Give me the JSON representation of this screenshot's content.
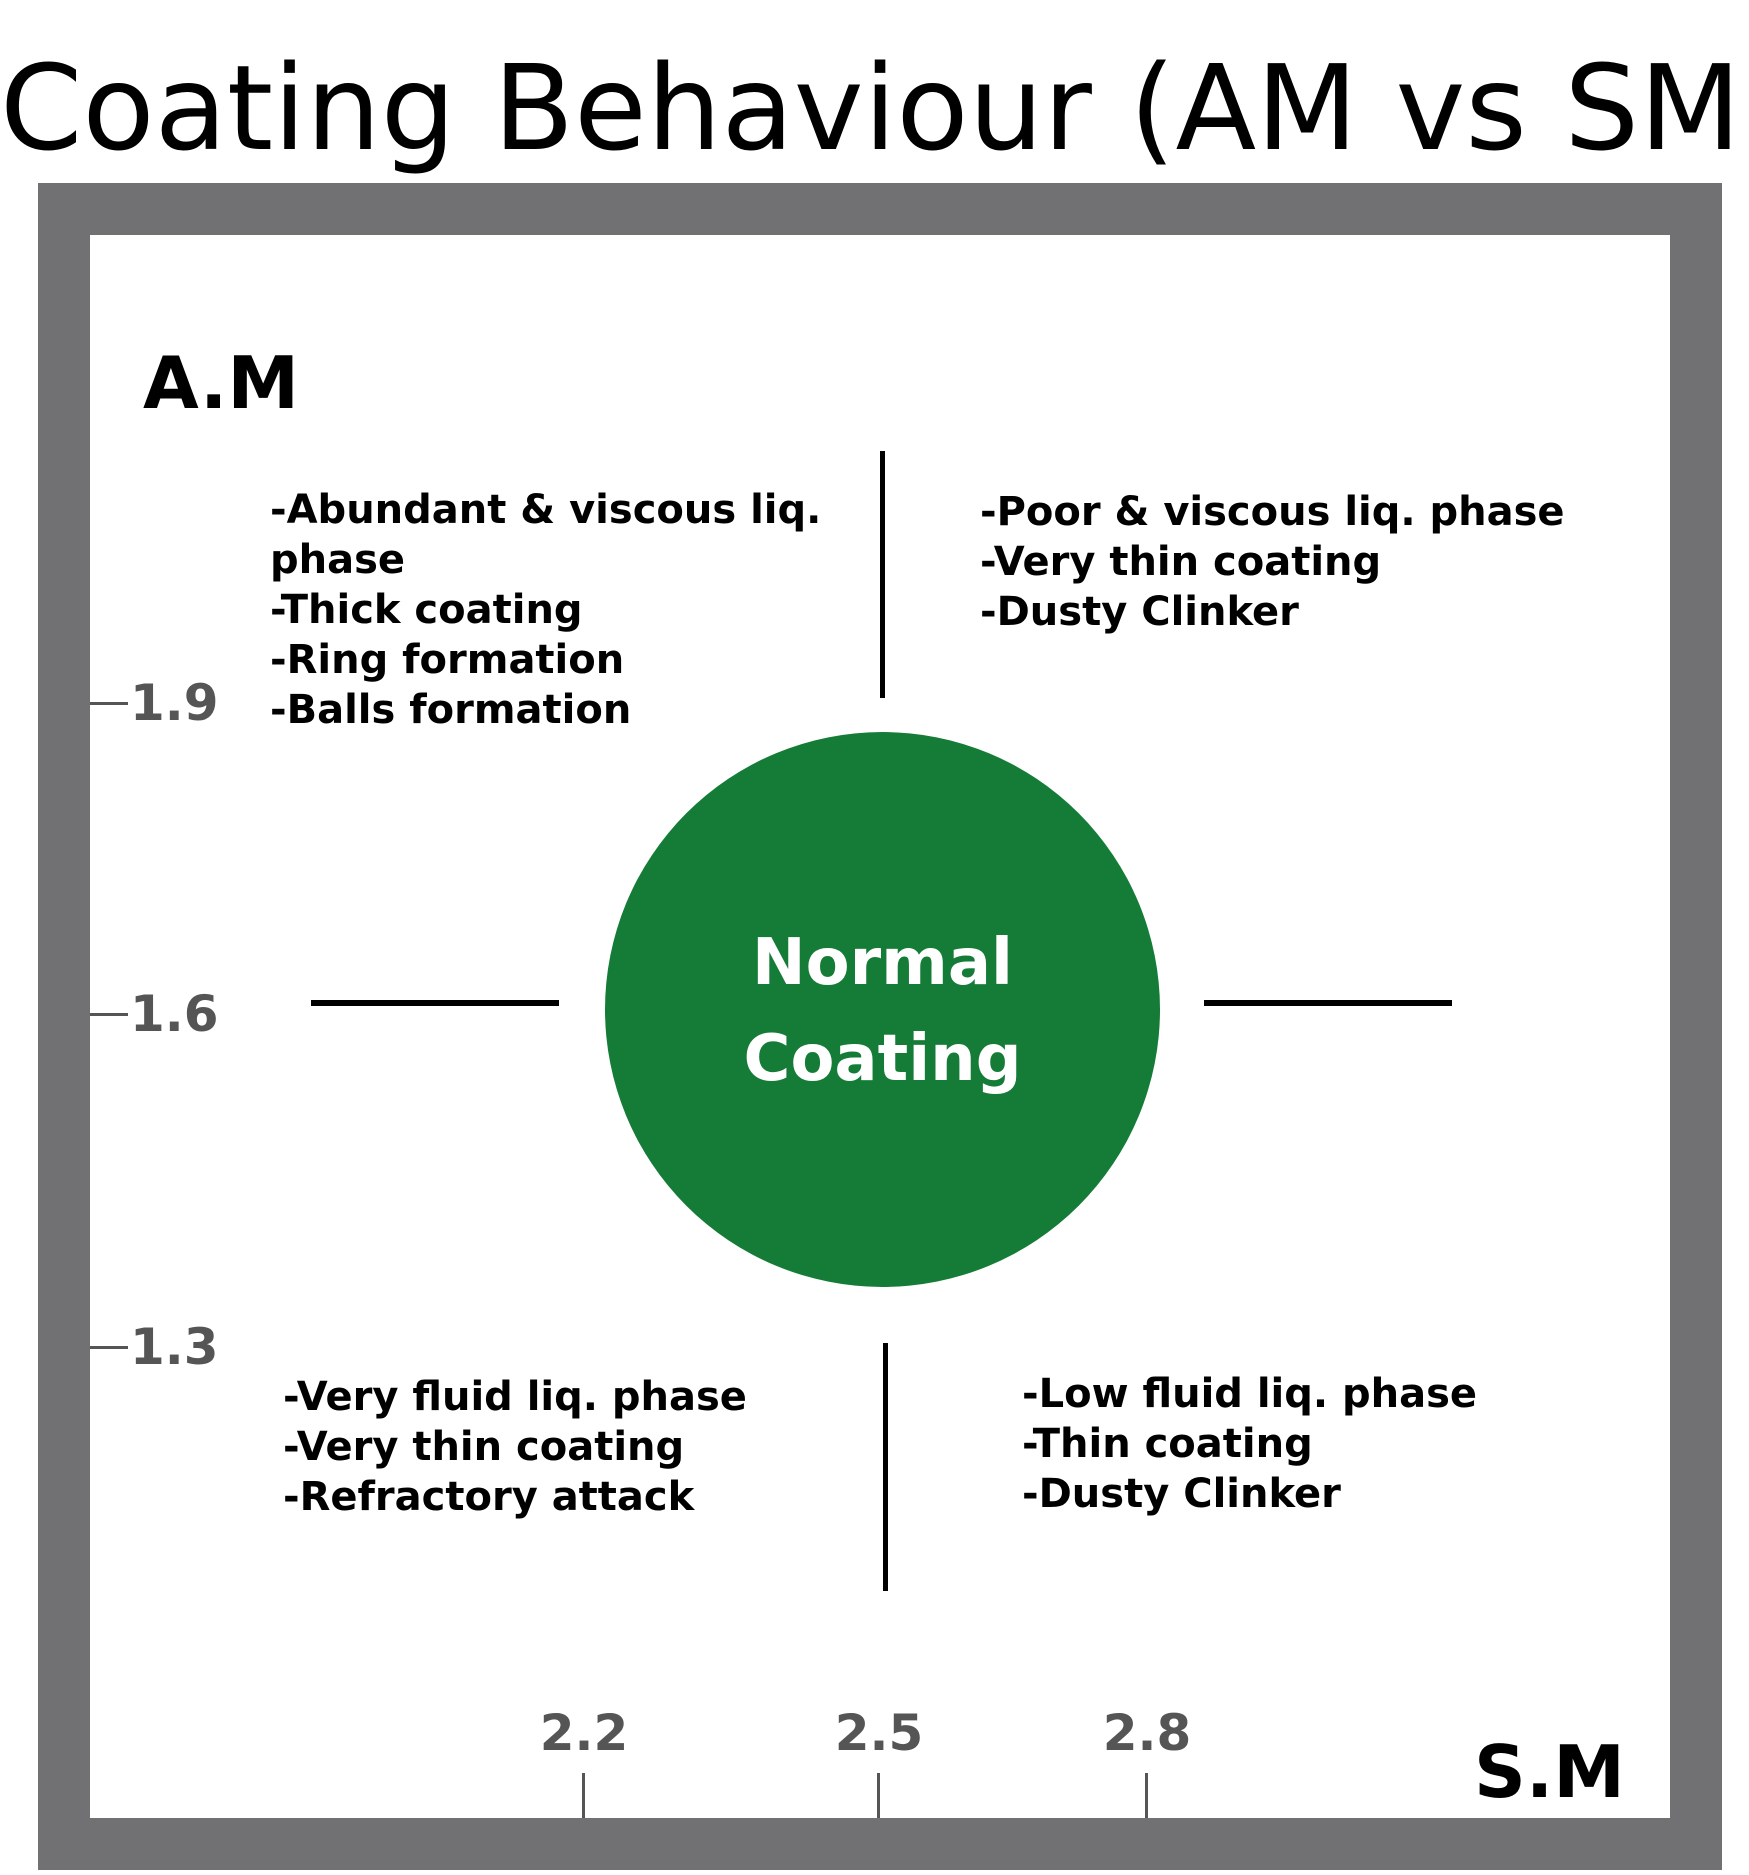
{
  "title": "Coating Behaviour (AM vs SM)",
  "axes": {
    "y_name": "A.M",
    "x_name": "S.M",
    "y_ticks": [
      "1.9",
      "1.6",
      "1.3"
    ],
    "x_ticks": [
      "2.2",
      "2.5",
      "2.8"
    ]
  },
  "center": {
    "label_line1": "Normal",
    "label_line2": "Coating",
    "color": "#157c37"
  },
  "quadrants": {
    "top_left": [
      "-Abundant & viscous liq. phase",
      "-Thick coating",
      "-Ring formation",
      "-Balls formation"
    ],
    "top_right": [
      "-Poor & viscous liq. phase",
      "-Very thin coating",
      "-Dusty Clinker"
    ],
    "bottom_left": [
      "-Very fluid liq. phase",
      "-Very thin coating",
      "-Refractory attack"
    ],
    "bottom_right": [
      "-Low fluid liq. phase",
      "-Thin coating",
      "-Dusty Clinker"
    ]
  },
  "colors": {
    "frame": "#717073",
    "tick": "#555555"
  }
}
